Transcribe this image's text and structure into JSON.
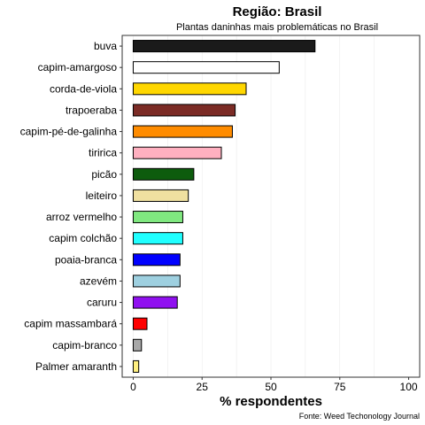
{
  "chart_data": {
    "type": "bar",
    "orientation": "horizontal",
    "title": "Região: Brasil",
    "subtitle": "Plantas daninhas mais problemáticas no Brasil",
    "xlabel": "% respondentes",
    "ylabel": "",
    "caption": "Fonte: Weed Techonology Journal",
    "xlim": [
      -4,
      104
    ],
    "x_ticks": [
      0,
      25,
      50,
      75,
      100
    ],
    "grid": "vertical minor lines",
    "legend": "none",
    "categories": [
      "buva",
      "capim-amargoso",
      "corda-de-viola",
      "trapoeraba",
      "capim-pé-de-galinha",
      "tiririca",
      "picão",
      "leiteiro",
      "arroz vermelho",
      "capim colchão",
      "poaia-branca",
      "azevém",
      "caruru",
      "capim massambará",
      "capim-branco",
      "Palmer amaranth"
    ],
    "values": [
      66,
      53,
      41,
      37,
      36,
      32,
      22,
      20,
      18,
      18,
      17,
      17,
      16,
      5,
      3,
      2
    ],
    "colors": [
      "#1a1a1a",
      "#ffffff",
      "#ffd700",
      "#7b2b25",
      "#ff8c00",
      "#ffb0c0",
      "#0d5c0d",
      "#f0e0a0",
      "#80e880",
      "#20ffff",
      "#0000ff",
      "#9ed0e0",
      "#9010f0",
      "#ff0000",
      "#a8a8a8",
      "#fff080"
    ]
  }
}
